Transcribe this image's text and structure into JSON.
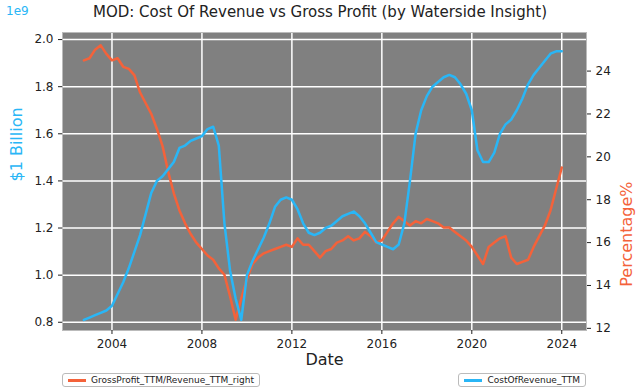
{
  "chart_data": {
    "type": "line",
    "title": "MOD: Cost Of Revenue vs Gross Profit (by Waterside Insight)",
    "xlabel": "Date",
    "ylabel": "$1 Billion",
    "y2label": "Percentage%",
    "annotations": [
      "1e9"
    ],
    "grid": true,
    "legend": "bottom",
    "x": [
      2002.75,
      2003,
      2003.25,
      2003.5,
      2003.75,
      2004,
      2004.25,
      2004.5,
      2004.75,
      2005,
      2005.25,
      2005.5,
      2005.75,
      2006,
      2006.25,
      2006.5,
      2006.75,
      2007,
      2007.25,
      2007.5,
      2007.75,
      2008,
      2008.25,
      2008.5,
      2008.75,
      2009,
      2009.25,
      2009.5,
      2009.75,
      2010,
      2010.25,
      2010.5,
      2010.75,
      2011,
      2011.25,
      2011.5,
      2011.75,
      2012,
      2012.25,
      2012.5,
      2012.75,
      2013,
      2013.25,
      2013.5,
      2013.75,
      2014,
      2014.25,
      2014.5,
      2014.75,
      2015,
      2015.25,
      2015.5,
      2015.75,
      2016,
      2016.25,
      2016.5,
      2016.75,
      2017,
      2017.25,
      2017.5,
      2017.75,
      2018,
      2018.25,
      2018.5,
      2018.75,
      2019,
      2019.25,
      2019.5,
      2019.75,
      2020,
      2020.25,
      2020.5,
      2020.75,
      2021,
      2021.25,
      2021.5,
      2021.75,
      2022,
      2022.25,
      2022.5,
      2022.75,
      2023,
      2023.25,
      2023.5,
      2023.75,
      2024
    ],
    "xlim": [
      2001.8,
      2025.1
    ],
    "xticks": [
      2004,
      2008,
      2012,
      2016,
      2020,
      2024
    ],
    "ylim": [
      0.765,
      2.03
    ],
    "yticks": [
      0.8,
      {
        "value": 1.0,
        "label": "1.0"
      },
      1.2,
      1.4,
      1.6,
      1.8,
      {
        "value": 2.0,
        "label": "2.0"
      }
    ],
    "y2lim": [
      11.9,
      25.8
    ],
    "y2ticks": [
      12,
      14,
      16,
      18,
      20,
      22,
      24
    ],
    "series": [
      {
        "name": "GrossProfit_TTM/Revenue_TTM_right",
        "color": "#f4623a",
        "axis": "y2",
        "values": [
          24.5,
          24.6,
          25.0,
          25.2,
          24.8,
          24.5,
          24.6,
          24.2,
          24.1,
          23.8,
          23.0,
          22.5,
          22.0,
          21.3,
          20.5,
          19.3,
          18.3,
          17.5,
          16.9,
          16.4,
          16.0,
          15.7,
          15.4,
          15.2,
          14.8,
          14.5,
          13.5,
          12.4,
          13.4,
          14.3,
          15.0,
          15.3,
          15.5,
          15.6,
          15.7,
          15.8,
          15.9,
          15.8,
          16.2,
          15.9,
          15.9,
          15.6,
          15.3,
          15.6,
          15.7,
          16.0,
          16.1,
          16.3,
          16.1,
          16.2,
          16.5,
          16.3,
          16.0,
          16.1,
          16.5,
          16.9,
          17.2,
          17.0,
          16.8,
          17.0,
          16.9,
          17.1,
          17.0,
          16.9,
          16.7,
          16.7,
          16.5,
          16.3,
          16.1,
          15.8,
          15.4,
          15.0,
          15.8,
          16.0,
          16.2,
          16.3,
          15.3,
          15.0,
          15.1,
          15.2,
          15.8,
          16.3,
          16.8,
          17.5,
          18.5,
          19.5
        ]
      },
      {
        "name": "CostOfRevenue_TTM",
        "color": "#29b6f6",
        "values": [
          0.81,
          0.82,
          0.83,
          0.84,
          0.85,
          0.87,
          0.92,
          0.97,
          1.03,
          1.1,
          1.17,
          1.26,
          1.35,
          1.4,
          1.42,
          1.45,
          1.48,
          1.54,
          1.55,
          1.57,
          1.58,
          1.59,
          1.62,
          1.63,
          1.55,
          1.22,
          1.02,
          0.9,
          0.81,
          1.0,
          1.06,
          1.11,
          1.16,
          1.22,
          1.29,
          1.32,
          1.33,
          1.32,
          1.28,
          1.22,
          1.18,
          1.17,
          1.18,
          1.2,
          1.21,
          1.23,
          1.25,
          1.26,
          1.27,
          1.25,
          1.22,
          1.18,
          1.14,
          1.13,
          1.12,
          1.11,
          1.13,
          1.22,
          1.4,
          1.6,
          1.7,
          1.76,
          1.8,
          1.82,
          1.84,
          1.85,
          1.84,
          1.81,
          1.77,
          1.7,
          1.53,
          1.48,
          1.48,
          1.52,
          1.6,
          1.64,
          1.66,
          1.7,
          1.75,
          1.81,
          1.85,
          1.88,
          1.91,
          1.94,
          1.95,
          1.95
        ]
      }
    ]
  }
}
